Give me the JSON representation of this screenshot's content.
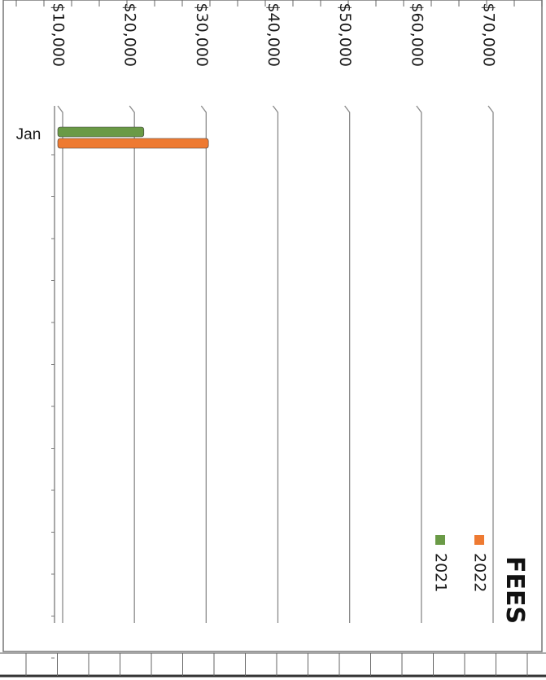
{
  "chart_data": {
    "type": "bar",
    "orientation": "horizontal",
    "title": "FEES",
    "categories": [
      "Jan"
    ],
    "series": [
      {
        "name": "2021",
        "values": [
          22000
        ],
        "color": "#6a9a46"
      },
      {
        "name": "2022",
        "values": [
          31000
        ],
        "color": "#ee7a32"
      }
    ],
    "xlim": [
      10000,
      70000
    ],
    "ticks": [
      10000,
      20000,
      30000,
      40000,
      50000,
      60000,
      70000
    ],
    "tick_labels": [
      "$10,000",
      "$20,000",
      "$30,000",
      "$40,000",
      "$50,000",
      "$60,000",
      "$70,000"
    ],
    "grid": true,
    "legend_position": "top-right",
    "rotated": "page rotated 90 degrees clockwise"
  }
}
